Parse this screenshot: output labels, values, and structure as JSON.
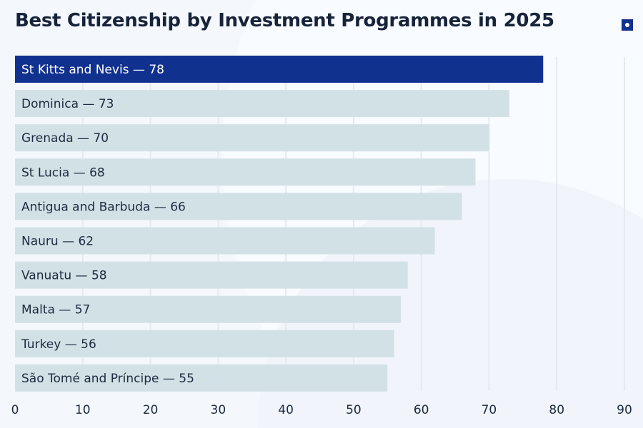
{
  "chart_data": {
    "type": "bar",
    "orientation": "horizontal",
    "title": "Best Citizenship by Investment Programmes in 2025",
    "categories": [
      "St Kitts and Nevis",
      "Dominica",
      "Grenada",
      "St Lucia",
      "Antigua and Barbuda",
      "Nauru",
      "Vanuatu",
      "Malta",
      "Turkey",
      "São Tomé and Príncipe"
    ],
    "values": [
      78,
      73,
      70,
      68,
      66,
      62,
      58,
      57,
      56,
      55
    ],
    "labels": [
      "St Kitts and Nevis — 78",
      "Dominica — 73",
      "Grenada — 70",
      "St Lucia — 68",
      "Antigua and Barbuda — 66",
      "Nauru — 62",
      "Vanuatu — 58",
      "Malta — 57",
      "Turkey — 56",
      "São Tomé and Príncipe — 55"
    ],
    "xlim": [
      0,
      90
    ],
    "xticks": [
      "0",
      "10",
      "20",
      "30",
      "40",
      "50",
      "60",
      "70",
      "80",
      "90"
    ],
    "grid": true,
    "colors": {
      "highlight": "#11318f",
      "bar": "#d2e1e6",
      "grid": "#e6e9ee"
    }
  },
  "header": {
    "icon": "square-dot-icon"
  }
}
